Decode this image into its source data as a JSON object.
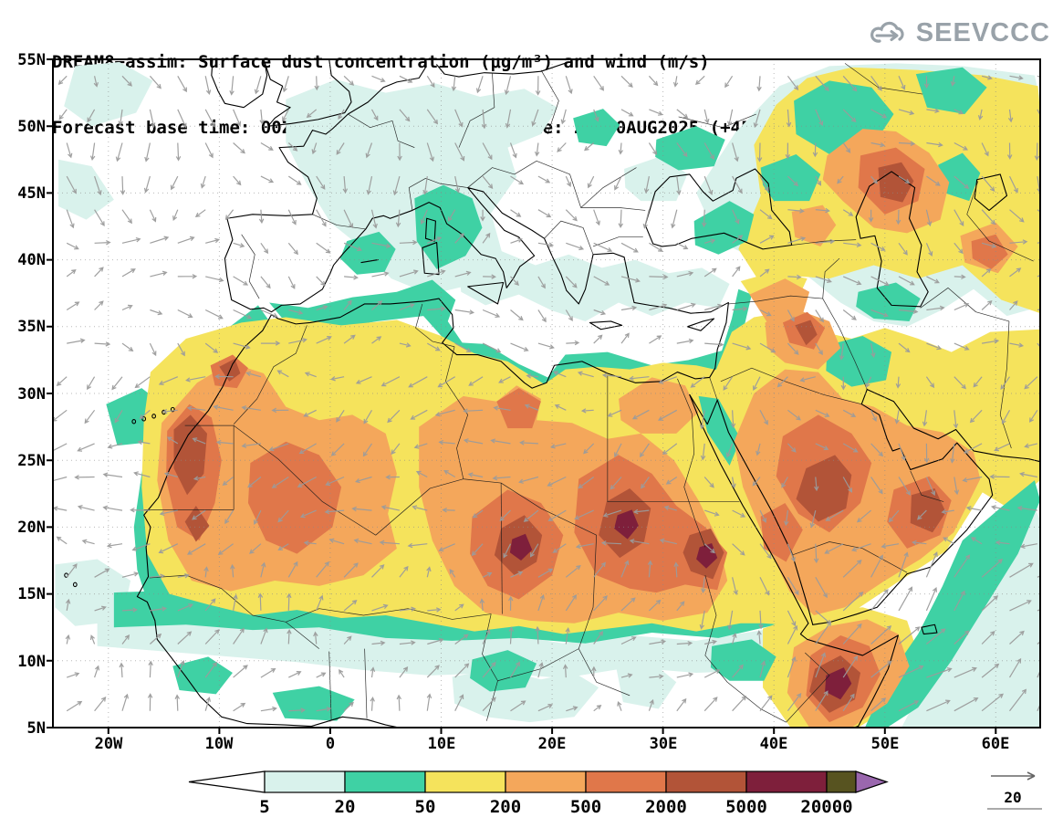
{
  "header": {
    "title_line1": "DREAM8−assim: Surface dust concentration (μg/m³) and wind (m/s)",
    "title_line2": "Forecast base time: 00Z19AUG2025      valid time: 21Z20AUG2025 (+45)",
    "logo": "SEEVCCC"
  },
  "axes": {
    "lat_labels": [
      "55N",
      "50N",
      "45N",
      "40N",
      "35N",
      "30N",
      "25N",
      "20N",
      "15N",
      "10N",
      "5N"
    ],
    "lon_labels": [
      "20W",
      "10W",
      "0",
      "10E",
      "20E",
      "30E",
      "40E",
      "50E",
      "60E"
    ]
  },
  "colorbar": {
    "labels": [
      "5",
      "20",
      "50",
      "200",
      "500",
      "2000",
      "5000",
      "20000"
    ],
    "colors": [
      "#ffffff",
      "#d9f2ec",
      "#3fd1a4",
      "#f5e35c",
      "#f4a75b",
      "#e0774a",
      "#b25438",
      "#7e1f3b",
      "#575320",
      "#9a67ae"
    ]
  },
  "wind": {
    "ref_label": "20",
    "color": "#9b9b9b"
  },
  "palette": {
    "cyan": "#d9f2ec",
    "green": "#3fd1a4",
    "yellow": "#f5e35c",
    "orange": "#f4a75b",
    "terracotta": "#e0774a",
    "brown": "#b25438",
    "maroon": "#7e1f3b",
    "olive": "#575320",
    "purple": "#9a67ae"
  }
}
